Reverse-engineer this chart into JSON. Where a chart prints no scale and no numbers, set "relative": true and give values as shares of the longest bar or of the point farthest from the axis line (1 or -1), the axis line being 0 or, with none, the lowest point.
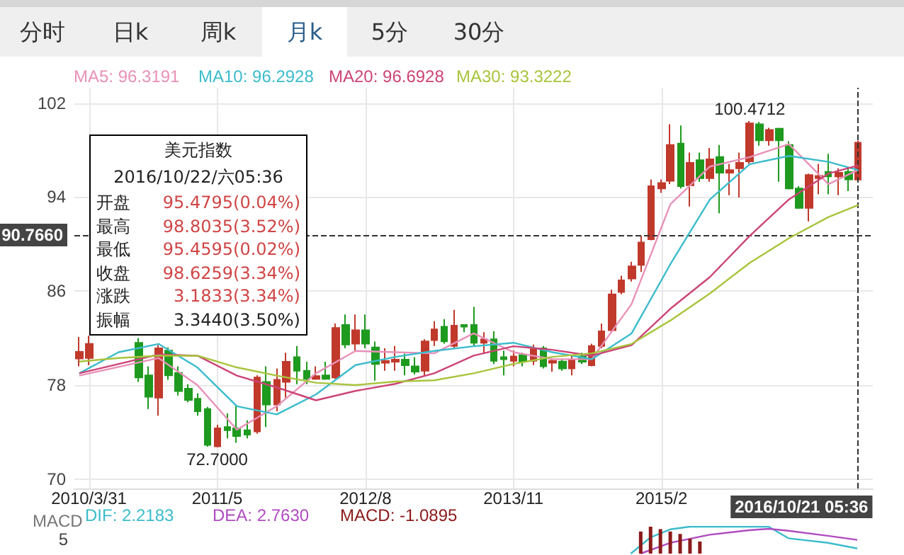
{
  "chart_data": [
    {
      "type": "other",
      "annotations": [
        "分时",
        "日k",
        "周k",
        "月k",
        "5分",
        "30分"
      ]
    },
    {
      "type": "candlestick",
      "x": [
        "2010-03",
        "2010-04",
        "2010-05",
        "2010-06",
        "2010-07",
        "2010-08",
        "2010-09",
        "2010-10",
        "2010-11",
        "2010-12",
        "2011-01",
        "2011-02",
        "2011-03",
        "2011-04",
        "2011-05",
        "2011-06",
        "2011-07",
        "2011-08",
        "2011-09",
        "2011-10",
        "2011-11",
        "2011-12",
        "2012-01",
        "2012-02",
        "2012-03",
        "2012-04",
        "2012-05",
        "2012-06",
        "2012-07",
        "2012-08",
        "2012-09",
        "2012-10",
        "2012-11",
        "2012-12",
        "2013-01",
        "2013-02",
        "2013-03",
        "2013-04",
        "2013-05",
        "2013-06",
        "2013-07",
        "2013-08",
        "2013-09",
        "2013-10",
        "2013-11",
        "2013-12",
        "2014-01",
        "2014-02",
        "2014-03",
        "2014-04",
        "2014-05",
        "2014-06",
        "2014-07",
        "2014-08",
        "2014-09",
        "2014-10",
        "2014-11",
        "2014-12",
        "2015-01",
        "2015-02",
        "2015-03",
        "2015-04",
        "2015-05",
        "2015-06",
        "2015-07",
        "2015-08",
        "2015-09",
        "2015-10",
        "2015-11",
        "2015-12",
        "2016-01",
        "2016-02",
        "2016-03",
        "2016-04",
        "2016-05",
        "2016-06",
        "2016-07",
        "2016-08",
        "2016-09",
        "2016-10"
      ],
      "xlim": [
        "2010-02-14",
        "2016-11-15"
      ],
      "xticks": [
        {
          "value": "2010-03-31",
          "label": "2010/3/31"
        },
        {
          "value": "2011-05",
          "label": "2011/5"
        },
        {
          "value": "2012-08",
          "label": "2012/8"
        },
        {
          "value": "2013-11",
          "label": "2013/11"
        },
        {
          "value": "2015-02",
          "label": "2015/2"
        }
      ],
      "ohlc": [
        [
          80.25,
          82.09,
          79.6,
          80.83
        ],
        [
          80.3,
          82.2,
          79.7,
          81.5
        ],
        null,
        null,
        null,
        null,
        [
          81.6,
          82.0,
          78.26,
          78.64
        ],
        [
          78.83,
          79.6,
          75.96,
          77.0
        ],
        [
          76.92,
          81.4,
          75.39,
          81.13
        ],
        [
          80.94,
          81.2,
          78.45,
          78.83
        ],
        [
          79.03,
          79.6,
          77.11,
          77.49
        ],
        [
          77.69,
          78.07,
          76.54,
          76.73
        ],
        [
          76.84,
          77.3,
          75.39,
          75.77
        ],
        [
          75.96,
          76.15,
          72.75,
          72.9
        ],
        [
          72.78,
          74.62,
          72.7,
          74.32
        ],
        [
          74.43,
          75.58,
          73.47,
          74.16
        ],
        [
          74.32,
          76.34,
          73.09,
          73.66
        ],
        [
          74.16,
          75.0,
          73.47,
          73.78
        ],
        [
          74.05,
          78.83,
          73.86,
          78.64
        ],
        [
          78.26,
          79.6,
          74.43,
          76.34
        ],
        [
          76.34,
          79.41,
          75.77,
          78.45
        ],
        [
          78.26,
          80.75,
          76.92,
          79.98
        ],
        [
          80.37,
          81.32,
          78.07,
          79.22
        ],
        [
          79.22,
          79.98,
          78.07,
          78.53
        ],
        [
          78.53,
          79.6,
          78.45,
          78.76
        ],
        [
          78.83,
          79.98,
          78.45,
          78.53
        ],
        [
          78.64,
          83.24,
          78.53,
          82.86
        ],
        [
          83.12,
          84.01,
          81.13,
          81.44
        ],
        [
          81.52,
          84.01,
          80.94,
          82.66
        ],
        [
          82.66,
          84.01,
          81.13,
          81.52
        ],
        [
          81.21,
          81.7,
          78.37,
          79.79
        ],
        [
          79.9,
          81.13,
          79.22,
          80.06
        ],
        [
          79.98,
          81.32,
          79.22,
          80.17
        ],
        [
          80.17,
          80.67,
          78.83,
          79.68
        ],
        [
          79.6,
          80.37,
          78.9,
          79.14
        ],
        [
          79.22,
          81.9,
          78.83,
          81.71
        ],
        [
          81.82,
          83.43,
          81.32,
          82.74
        ],
        [
          82.97,
          83.62,
          81.52,
          81.71
        ],
        [
          81.32,
          84.39,
          81.13,
          83.05
        ],
        [
          83.12,
          83.12,
          82.5,
          82.97
        ],
        [
          83.12,
          84.66,
          81.32,
          81.6
        ],
        [
          81.6,
          82.5,
          80.75,
          81.9
        ],
        [
          81.9,
          82.58,
          79.79,
          80.06
        ],
        [
          80.37,
          80.94,
          78.83,
          80.2
        ],
        [
          80.06,
          80.94,
          79.6,
          80.44
        ],
        [
          80.56,
          80.75,
          79.6,
          79.98
        ],
        [
          80.06,
          81.44,
          79.7,
          81.06
        ],
        [
          81.13,
          81.32,
          79.41,
          79.6
        ],
        [
          79.9,
          80.2,
          79.14,
          80.06
        ],
        [
          80.0,
          80.2,
          79.22,
          79.41
        ],
        [
          79.41,
          80.56,
          78.83,
          80.17
        ],
        [
          80.44,
          80.75,
          79.79,
          79.98
        ],
        [
          79.68,
          81.52,
          79.6,
          81.32
        ],
        [
          81.32,
          83.24,
          81.13,
          82.58
        ],
        [
          82.66,
          86.11,
          82.47,
          85.73
        ],
        [
          85.92,
          87.3,
          85.73,
          86.92
        ],
        [
          87.07,
          88.49,
          86.8,
          88.1
        ],
        [
          88.22,
          90.71,
          87.64,
          90.13
        ],
        [
          90.4,
          95.5,
          90.32,
          94.92
        ],
        [
          94.73,
          95.5,
          94.35,
          95.19
        ],
        [
          95.38,
          100.2,
          95.1,
          98.44
        ],
        [
          98.56,
          100.09,
          94.73,
          94.92
        ],
        [
          95.0,
          97.79,
          93.2,
          96.91
        ],
        [
          97.14,
          97.79,
          95.3,
          95.61
        ],
        [
          95.61,
          98.18,
          95.3,
          97.22
        ],
        [
          97.41,
          98.44,
          92.62,
          96.07
        ],
        [
          96.07,
          96.83,
          94.16,
          96.3
        ],
        [
          96.45,
          97.79,
          93.96,
          96.91
        ],
        [
          97.03,
          100.4712,
          96.83,
          100.28
        ],
        [
          100.2,
          100.4,
          98.37,
          98.83
        ],
        [
          98.83,
          99.9,
          98.37,
          99.71
        ],
        [
          99.82,
          99.9,
          95.3,
          98.83
        ],
        [
          98.44,
          98.75,
          94.66,
          94.73
        ],
        [
          94.73,
          94.92,
          93.0,
          93.08
        ],
        [
          93.08,
          95.99,
          91.93,
          95.88
        ],
        [
          95.6,
          96.83,
          94.23,
          95.8
        ],
        [
          96.15,
          97.68,
          94.23,
          95.76
        ],
        [
          95.76,
          96.45,
          94.16,
          96.07
        ],
        [
          96.15,
          96.45,
          94.5,
          95.5
        ],
        [
          95.4795,
          98.8035,
          95.4595,
          98.6259
        ]
      ],
      "series": [
        {
          "type": "line",
          "name": "MA5: 96.3191",
          "color": "#e891b8",
          "values": [
            78.8,
            null,
            null,
            null,
            null,
            null,
            null,
            null,
            80.3,
            null,
            null,
            null,
            78.0,
            null,
            null,
            null,
            74.2,
            null,
            null,
            null,
            76.2,
            null,
            null,
            null,
            79.0,
            null,
            null,
            null,
            80.9,
            null,
            null,
            null,
            80.8,
            null,
            null,
            null,
            80.7,
            null,
            null,
            null,
            82.4,
            null,
            null,
            null,
            80.8,
            null,
            null,
            null,
            80.2,
            null,
            null,
            null,
            80.2,
            null,
            null,
            null,
            84.9,
            null,
            null,
            null,
            93.4,
            null,
            null,
            null,
            96.6,
            null,
            null,
            null,
            97.4,
            null,
            null,
            null,
            98.5,
            null,
            null,
            null,
            95.1,
            null,
            null,
            96.3191
          ]
        },
        {
          "type": "line",
          "name": "MA10: 96.2928",
          "color": "#3cbccc",
          "values": [
            79.0,
            null,
            null,
            null,
            80.8,
            null,
            null,
            null,
            81.5,
            null,
            null,
            null,
            79.5,
            null,
            null,
            null,
            76.2,
            null,
            null,
            null,
            75.5,
            null,
            null,
            null,
            77.2,
            null,
            null,
            null,
            79.7,
            null,
            null,
            null,
            80.4,
            null,
            null,
            null,
            80.9,
            null,
            null,
            null,
            81.3,
            null,
            null,
            null,
            81.6,
            null,
            null,
            null,
            80.8,
            null,
            null,
            null,
            80.2,
            null,
            null,
            null,
            82.4,
            null,
            null,
            null,
            88.3,
            null,
            null,
            null,
            93.8,
            null,
            null,
            null,
            96.8,
            null,
            null,
            null,
            97.5,
            null,
            null,
            null,
            97.0,
            null,
            null,
            96.2928
          ]
        },
        {
          "type": "line",
          "name": "MA20: 96.6928",
          "color": "#cc4477",
          "values": [
            79.0,
            null,
            null,
            null,
            79.8,
            null,
            null,
            null,
            80.6,
            null,
            null,
            null,
            80.5,
            null,
            null,
            null,
            78.8,
            null,
            null,
            null,
            77.8,
            null,
            null,
            null,
            76.7,
            null,
            null,
            null,
            77.5,
            null,
            null,
            null,
            78.1,
            null,
            null,
            null,
            79.0,
            null,
            null,
            null,
            80.5,
            null,
            null,
            null,
            81.3,
            null,
            null,
            null,
            81.0,
            null,
            null,
            null,
            80.5,
            null,
            null,
            null,
            81.4,
            null,
            null,
            null,
            84.5,
            null,
            null,
            null,
            87.2,
            null,
            null,
            null,
            90.7,
            null,
            null,
            null,
            93.8,
            null,
            null,
            null,
            96.0,
            null,
            null,
            96.6928
          ]
        },
        {
          "type": "line",
          "name": "MA30: 93.3222",
          "color": "#a8c43c",
          "values": [
            80.0,
            null,
            null,
            null,
            80.3,
            null,
            null,
            null,
            80.5,
            null,
            null,
            null,
            80.5,
            null,
            null,
            null,
            79.5,
            null,
            null,
            null,
            78.8,
            null,
            null,
            null,
            78.2,
            null,
            null,
            null,
            78.0,
            null,
            null,
            null,
            78.3,
            null,
            null,
            null,
            78.4,
            null,
            null,
            null,
            79.0,
            null,
            null,
            null,
            79.8,
            null,
            null,
            null,
            80.4,
            null,
            null,
            null,
            80.7,
            null,
            null,
            null,
            81.5,
            null,
            null,
            null,
            83.5,
            null,
            null,
            null,
            85.8,
            null,
            null,
            null,
            88.4,
            null,
            null,
            null,
            90.5,
            null,
            null,
            null,
            92.3,
            null,
            null,
            93.3222
          ]
        }
      ],
      "ylim": [
        69.2,
        103.3
      ],
      "yticks": [
        70,
        78,
        86,
        94,
        102
      ],
      "grid": true,
      "marker": "none",
      "ref_lines": [
        {
          "axis": "y",
          "value": 90.766,
          "label": "90.7660",
          "line_style": "dashed"
        },
        {
          "axis": "x",
          "value": "2016-10",
          "label": "2016/10/21 05:36",
          "line_style": "dashed"
        }
      ],
      "annotations": [
        "100.4712",
        "72.7000"
      ]
    },
    {
      "type": "other",
      "title": "美元指数",
      "subtitle": "2016/10/22/六05:36",
      "annotations": [
        "开盘",
        "95.4795(0.04%)",
        "最高",
        "98.8035(3.52%)",
        "最低",
        "95.4595(0.02%)",
        "收盘",
        "98.6259(3.34%)",
        "涨跌",
        "3.1833(3.34%)",
        "振幅",
        "3.3440(3.50%)"
      ]
    },
    {
      "type": "line",
      "title": "MACD",
      "relative": true,
      "categories": [
        null,
        null,
        null,
        null,
        null,
        null,
        null,
        null,
        null,
        null,
        null,
        null,
        null,
        null,
        null,
        null,
        null,
        null,
        null,
        null,
        null,
        null,
        null,
        null,
        null,
        null,
        null,
        null,
        null,
        null,
        null,
        null,
        null,
        null,
        null,
        null,
        null,
        null,
        null,
        null,
        null,
        null,
        null,
        null,
        null,
        null,
        null,
        null,
        null,
        null,
        null,
        null,
        null,
        null,
        null,
        null,
        null,
        null,
        null,
        null,
        null,
        null,
        null,
        null,
        null,
        null,
        null,
        null,
        null,
        null,
        null,
        null,
        null,
        null,
        null,
        null,
        null,
        null,
        null,
        null
      ],
      "series": [
        {
          "name": "DIF: 2.2183",
          "color": "#3cbccc",
          "values": [
            null,
            null,
            null,
            null,
            null,
            null,
            null,
            null,
            null,
            null,
            null,
            null,
            null,
            null,
            null,
            null,
            null,
            null,
            null,
            null,
            null,
            null,
            null,
            null,
            null,
            null,
            null,
            null,
            null,
            null,
            null,
            null,
            null,
            null,
            null,
            null,
            null,
            null,
            null,
            null,
            null,
            null,
            null,
            null,
            null,
            null,
            null,
            null,
            null,
            null,
            null,
            null,
            null,
            null,
            null,
            null,
            0,
            null,
            0.6,
            null,
            0.9,
            null,
            1,
            null,
            null,
            null,
            1,
            null,
            null,
            null,
            1,
            null,
            0.57,
            null,
            null,
            null,
            0.4,
            null,
            null,
            0.19
          ]
        },
        {
          "name": "DEA: 2.7630",
          "color": "#b04cc0",
          "values": [
            null,
            null,
            null,
            null,
            null,
            null,
            null,
            null,
            null,
            null,
            null,
            null,
            null,
            null,
            null,
            null,
            null,
            null,
            null,
            null,
            null,
            null,
            null,
            null,
            null,
            null,
            null,
            null,
            null,
            null,
            null,
            null,
            null,
            null,
            null,
            null,
            null,
            null,
            null,
            null,
            null,
            null,
            null,
            null,
            null,
            null,
            null,
            null,
            null,
            null,
            null,
            null,
            null,
            null,
            null,
            null,
            null,
            0,
            null,
            null,
            0.4,
            null,
            null,
            null,
            0.7,
            null,
            null,
            null,
            0.87,
            null,
            0.92,
            null,
            0.85,
            null,
            null,
            null,
            0.66,
            null,
            null,
            0.51
          ]
        }
      ],
      "marker": "none",
      "annotations": [
        "5"
      ]
    },
    {
      "type": "bar",
      "relative": true,
      "categories": [
        null,
        null,
        null,
        null,
        null,
        null,
        null
      ],
      "series": [
        {
          "name": "MACD: -1.0895",
          "color": "#8b1a1a",
          "values": [
            0.82,
            1,
            0.91,
            0.82,
            0.73,
            0.55,
            0.45
          ]
        }
      ]
    }
  ]
}
